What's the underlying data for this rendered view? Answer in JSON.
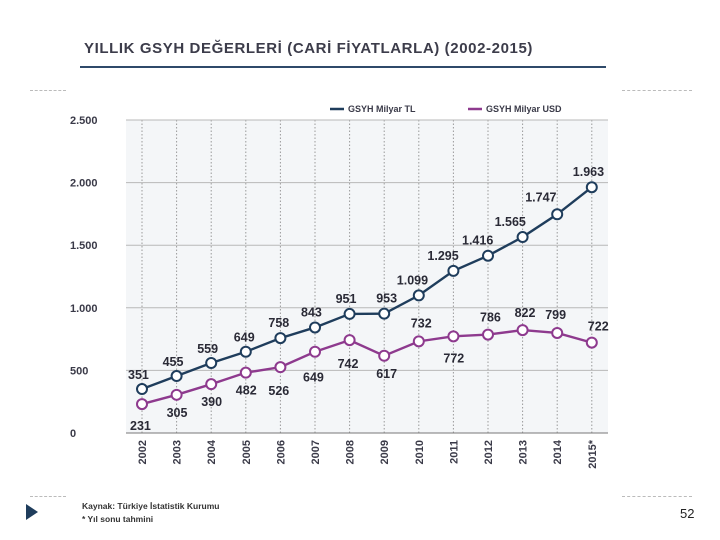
{
  "header": {
    "title": "YILLIK GSYH DEĞERLERİ (CARİ FİYATLARLA) (2002-2015)"
  },
  "chart_data": {
    "type": "line",
    "title": "YILLIK GSYH DEĞERLERİ (CARİ FİYATLARLA) (2002-2015)",
    "categories": [
      "2002",
      "2003",
      "2004",
      "2005",
      "2006",
      "2007",
      "2008",
      "2009",
      "2010",
      "2011",
      "2012",
      "2013",
      "2014",
      "2015*"
    ],
    "series": [
      {
        "name": "GSYH Milyar TL",
        "color": "#1f3d5c",
        "values": [
          351,
          455,
          559,
          649,
          758,
          843,
          951,
          953,
          1099,
          1295,
          1416,
          1565,
          1747,
          1963
        ],
        "labels": [
          "351",
          "455",
          "559",
          "649",
          "758",
          "843",
          "951",
          "953",
          "1.099",
          "1.295",
          "1.416",
          "1.565",
          "1.747",
          "1.963"
        ]
      },
      {
        "name": "GSYH Milyar USD",
        "color": "#8e3a8e",
        "values": [
          231,
          305,
          390,
          482,
          526,
          649,
          742,
          617,
          732,
          772,
          786,
          822,
          799,
          722
        ],
        "labels": [
          "231",
          "305",
          "390",
          "482",
          "526",
          "649",
          "742",
          "617",
          "732",
          "772",
          "786",
          "822",
          "799",
          "722"
        ]
      }
    ],
    "yticks": [
      0,
      500,
      1000,
      1500,
      2000,
      2500
    ],
    "ytick_labels": [
      "0",
      "500",
      "1.000",
      "1.500",
      "2.000",
      "2.500"
    ],
    "ylim": [
      0,
      2500
    ],
    "grid": true,
    "legend": "top-right"
  },
  "footer": {
    "source": "Kaynak: Türkiye İstatistik Kurumu",
    "note": "* Yıl sonu tahmini",
    "page_number": "52"
  }
}
